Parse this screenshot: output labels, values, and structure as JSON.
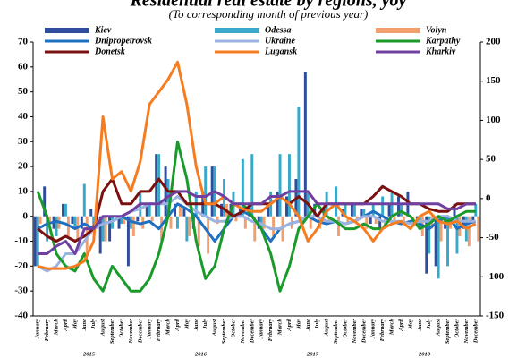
{
  "chart_data": {
    "type": "bar-line",
    "title": "Residential real estate by regions, yoy",
    "subtitle": "(To corresponding month of previous year)",
    "categories": [
      "January",
      "February",
      "March",
      "April",
      "May",
      "June",
      "July",
      "August",
      "September",
      "October",
      "November",
      "December",
      "January",
      "February",
      "March",
      "April",
      "May",
      "June",
      "July",
      "August",
      "September",
      "October",
      "November",
      "December",
      "January",
      "February",
      "March",
      "April",
      "May",
      "June",
      "July",
      "August",
      "September",
      "October",
      "November",
      "December",
      "January",
      "February",
      "March",
      "April",
      "May",
      "June",
      "July",
      "August",
      "September",
      "October",
      "November",
      "December"
    ],
    "year_labels": [
      "2015",
      "2016",
      "2017",
      "2018"
    ],
    "ylim": [
      -40,
      70
    ],
    "yticks": [
      -40,
      -30,
      -20,
      -10,
      0,
      10,
      20,
      30,
      40,
      50,
      60,
      70
    ],
    "y2lim": [
      -150,
      200
    ],
    "y2ticks": [
      -150,
      -100,
      -50,
      0,
      50,
      100,
      150,
      200
    ],
    "series": [
      {
        "name": "Kiev",
        "kind": "bar",
        "color": "#2e4d9b",
        "values": [
          -20,
          12,
          -5,
          5,
          -3,
          -5,
          3,
          -15,
          -10,
          -5,
          -20,
          -2,
          5,
          25,
          20,
          5,
          3,
          -5,
          10,
          20,
          5,
          5,
          3,
          5,
          -5,
          5,
          10,
          8,
          15,
          58,
          5,
          3,
          0,
          3,
          5,
          3,
          -3,
          -5,
          5,
          8,
          10,
          -2,
          -23,
          -20,
          -5,
          5,
          -5,
          -2
        ]
      },
      {
        "name": "Odessa",
        "kind": "bar",
        "color": "#3aa9c9",
        "values": [
          -20,
          -10,
          -8,
          5,
          -5,
          13,
          -5,
          -10,
          -5,
          -3,
          -5,
          10,
          5,
          25,
          15,
          -5,
          -10,
          10,
          20,
          20,
          15,
          10,
          23,
          25,
          -5,
          10,
          25,
          25,
          44,
          10,
          0,
          10,
          12,
          5,
          5,
          3,
          5,
          8,
          10,
          5,
          0,
          -5,
          -15,
          -25,
          -20,
          -15,
          -10,
          5
        ]
      },
      {
        "name": "Volyn",
        "kind": "bar",
        "color": "#f0a070",
        "values": [
          -3,
          -2,
          -5,
          -8,
          -10,
          -15,
          -5,
          -10,
          0,
          -3,
          -8,
          -5,
          -2,
          -10,
          -5,
          5,
          -8,
          -12,
          -15,
          -3,
          5,
          -2,
          -5,
          -10,
          -5,
          -8,
          -10,
          -5,
          -3,
          -5,
          -5,
          -3,
          -8,
          -3,
          -2,
          -5,
          -3,
          -5,
          -3,
          -2,
          -3,
          -8,
          -5,
          -10,
          -5,
          -8,
          -12,
          -10
        ]
      },
      {
        "name": "Dnipropetrovsk",
        "kind": "line",
        "color": "#1f6fc2",
        "values": [
          -5,
          -3,
          -2,
          -3,
          -5,
          -3,
          -5,
          -3,
          -2,
          0,
          -2,
          -3,
          -2,
          -5,
          0,
          5,
          3,
          0,
          -5,
          -10,
          -5,
          0,
          2,
          0,
          -5,
          -10,
          -5,
          -3,
          -2,
          0,
          -2,
          -3,
          -2,
          -3,
          -2,
          0,
          2,
          0,
          -2,
          -3,
          -2,
          -3,
          -5,
          -2,
          0,
          -5,
          -3,
          -2
        ]
      },
      {
        "name": "Ukraine",
        "kind": "line",
        "color": "#9ab3e0",
        "values": [
          -20,
          -22,
          -20,
          -15,
          -15,
          -10,
          -5,
          -3,
          -2,
          0,
          2,
          3,
          5,
          5,
          5,
          8,
          5,
          2,
          0,
          -2,
          -2,
          0,
          0,
          -2,
          -3,
          -5,
          -5,
          -3,
          -2,
          0,
          0,
          -2,
          -2,
          -3,
          -2,
          0,
          0,
          -2,
          -2,
          -2,
          -3,
          -2,
          -2,
          0,
          0,
          -2,
          -2,
          -2
        ]
      },
      {
        "name": "Karpathy",
        "kind": "line",
        "color": "#1a9a2a",
        "values": [
          10,
          0,
          -15,
          -20,
          -22,
          -15,
          -25,
          -30,
          -20,
          -25,
          -30,
          -30,
          -25,
          -15,
          0,
          30,
          15,
          -10,
          -25,
          -20,
          -5,
          5,
          5,
          0,
          -5,
          -15,
          -30,
          -20,
          -5,
          0,
          5,
          0,
          -2,
          -5,
          -5,
          -3,
          -5,
          -5,
          0,
          2,
          0,
          -5,
          -3,
          0,
          -2,
          0,
          2,
          2
        ]
      },
      {
        "name": "Donetsk",
        "kind": "line",
        "color": "#7a1010",
        "values": [
          -5,
          -8,
          -10,
          -8,
          -10,
          -8,
          -5,
          10,
          15,
          5,
          5,
          10,
          10,
          15,
          10,
          10,
          5,
          5,
          5,
          5,
          3,
          0,
          2,
          5,
          5,
          5,
          8,
          5,
          8,
          5,
          0,
          5,
          5,
          5,
          5,
          5,
          8,
          12,
          10,
          8,
          5,
          5,
          3,
          2,
          2,
          5,
          5,
          5
        ]
      },
      {
        "name": "Lugansk",
        "kind": "line",
        "color": "#f57c1f",
        "values": [
          -20,
          -21,
          -21,
          -21,
          -20,
          -18,
          -10,
          40,
          15,
          18,
          10,
          22,
          45,
          50,
          55,
          62,
          45,
          20,
          5,
          5,
          8,
          5,
          3,
          2,
          2,
          5,
          8,
          5,
          0,
          -10,
          -5,
          2,
          5,
          0,
          -2,
          -5,
          -10,
          -5,
          -3,
          -2,
          -5,
          0,
          2,
          -2,
          -3,
          -2,
          -5,
          -3
        ]
      },
      {
        "name": "Kharkiv",
        "kind": "line",
        "color": "#7040a0",
        "values": [
          -15,
          -15,
          -12,
          -10,
          -15,
          -5,
          -5,
          0,
          0,
          0,
          2,
          5,
          5,
          5,
          8,
          10,
          10,
          8,
          8,
          10,
          8,
          5,
          5,
          5,
          5,
          8,
          8,
          10,
          10,
          10,
          5,
          5,
          5,
          5,
          5,
          5,
          5,
          5,
          5,
          5,
          5,
          5,
          5,
          5,
          3,
          3,
          5,
          5
        ]
      }
    ]
  }
}
